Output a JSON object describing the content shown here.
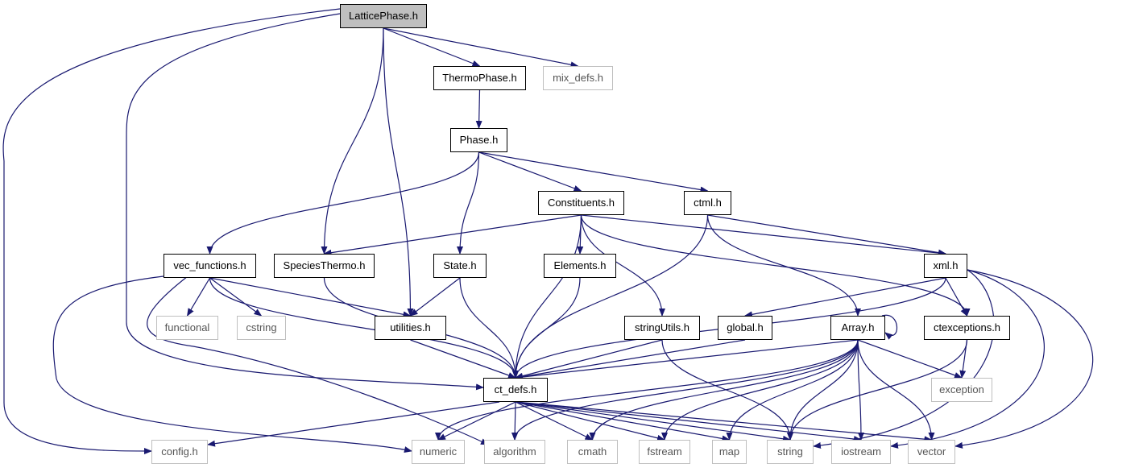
{
  "graph": {
    "nodes": {
      "LatticePhase": {
        "label": "LatticePhase.h",
        "kind": "root"
      },
      "ThermoPhase": {
        "label": "ThermoPhase.h",
        "kind": "file"
      },
      "mix_defs": {
        "label": "mix_defs.h",
        "kind": "external"
      },
      "Phase": {
        "label": "Phase.h",
        "kind": "file"
      },
      "Constituents": {
        "label": "Constituents.h",
        "kind": "file"
      },
      "ctml": {
        "label": "ctml.h",
        "kind": "file"
      },
      "vec_functions": {
        "label": "vec_functions.h",
        "kind": "file"
      },
      "SpeciesThermo": {
        "label": "SpeciesThermo.h",
        "kind": "file"
      },
      "State": {
        "label": "State.h",
        "kind": "file"
      },
      "Elements": {
        "label": "Elements.h",
        "kind": "file"
      },
      "xml": {
        "label": "xml.h",
        "kind": "file"
      },
      "functional": {
        "label": "functional",
        "kind": "external"
      },
      "cstring": {
        "label": "cstring",
        "kind": "external"
      },
      "utilities": {
        "label": "utilities.h",
        "kind": "file"
      },
      "stringUtils": {
        "label": "stringUtils.h",
        "kind": "file"
      },
      "global": {
        "label": "global.h",
        "kind": "file"
      },
      "Array": {
        "label": "Array.h",
        "kind": "file"
      },
      "ctexceptions": {
        "label": "ctexceptions.h",
        "kind": "file"
      },
      "ct_defs": {
        "label": "ct_defs.h",
        "kind": "file"
      },
      "exception": {
        "label": "exception",
        "kind": "external"
      },
      "config": {
        "label": "config.h",
        "kind": "external"
      },
      "numeric": {
        "label": "numeric",
        "kind": "external"
      },
      "algorithm": {
        "label": "algorithm",
        "kind": "external"
      },
      "cmath": {
        "label": "cmath",
        "kind": "external"
      },
      "fstream": {
        "label": "fstream",
        "kind": "external"
      },
      "map": {
        "label": "map",
        "kind": "external"
      },
      "string": {
        "label": "string",
        "kind": "external"
      },
      "iostream": {
        "label": "iostream",
        "kind": "external"
      },
      "vector": {
        "label": "vector",
        "kind": "external"
      }
    },
    "edges": [
      [
        "LatticePhase",
        "config"
      ],
      [
        "LatticePhase",
        "ct_defs"
      ],
      [
        "LatticePhase",
        "ThermoPhase"
      ],
      [
        "LatticePhase",
        "mix_defs"
      ],
      [
        "LatticePhase",
        "SpeciesThermo"
      ],
      [
        "LatticePhase",
        "utilities"
      ],
      [
        "ThermoPhase",
        "Phase"
      ],
      [
        "Phase",
        "vec_functions"
      ],
      [
        "Phase",
        "State"
      ],
      [
        "Phase",
        "Constituents"
      ],
      [
        "Phase",
        "ctml"
      ],
      [
        "Constituents",
        "SpeciesThermo"
      ],
      [
        "Constituents",
        "ct_defs"
      ],
      [
        "Constituents",
        "Elements"
      ],
      [
        "Constituents",
        "stringUtils"
      ],
      [
        "Constituents",
        "xml"
      ],
      [
        "Constituents",
        "ctexceptions"
      ],
      [
        "ctml",
        "ct_defs"
      ],
      [
        "ctml",
        "xml"
      ],
      [
        "ctml",
        "Array"
      ],
      [
        "vec_functions",
        "numeric"
      ],
      [
        "vec_functions",
        "algorithm"
      ],
      [
        "vec_functions",
        "functional"
      ],
      [
        "vec_functions",
        "cstring"
      ],
      [
        "vec_functions",
        "utilities"
      ],
      [
        "vec_functions",
        "ct_defs"
      ],
      [
        "SpeciesThermo",
        "ct_defs"
      ],
      [
        "State",
        "utilities"
      ],
      [
        "State",
        "ct_defs"
      ],
      [
        "Elements",
        "ct_defs"
      ],
      [
        "xml",
        "global"
      ],
      [
        "xml",
        "ct_defs"
      ],
      [
        "xml",
        "ctexceptions"
      ],
      [
        "xml",
        "string"
      ],
      [
        "xml",
        "iostream"
      ],
      [
        "xml",
        "vector"
      ],
      [
        "utilities",
        "ct_defs"
      ],
      [
        "stringUtils",
        "ct_defs"
      ],
      [
        "stringUtils",
        "string"
      ],
      [
        "global",
        "ct_defs"
      ],
      [
        "Array",
        "Array"
      ],
      [
        "Array",
        "ct_defs"
      ],
      [
        "Array",
        "exception"
      ],
      [
        "Array",
        "numeric"
      ],
      [
        "Array",
        "algorithm"
      ],
      [
        "Array",
        "cmath"
      ],
      [
        "Array",
        "fstream"
      ],
      [
        "Array",
        "map"
      ],
      [
        "Array",
        "string"
      ],
      [
        "Array",
        "iostream"
      ],
      [
        "Array",
        "vector"
      ],
      [
        "ctexceptions",
        "exception"
      ],
      [
        "ctexceptions",
        "string"
      ],
      [
        "ct_defs",
        "config"
      ],
      [
        "ct_defs",
        "numeric"
      ],
      [
        "ct_defs",
        "algorithm"
      ],
      [
        "ct_defs",
        "cmath"
      ],
      [
        "ct_defs",
        "fstream"
      ],
      [
        "ct_defs",
        "map"
      ],
      [
        "ct_defs",
        "string"
      ],
      [
        "ct_defs",
        "iostream"
      ],
      [
        "ct_defs",
        "vector"
      ]
    ],
    "edge_color": "#191970",
    "root_fill": "#bfbfbf",
    "external_border": "#bfbfbf"
  }
}
